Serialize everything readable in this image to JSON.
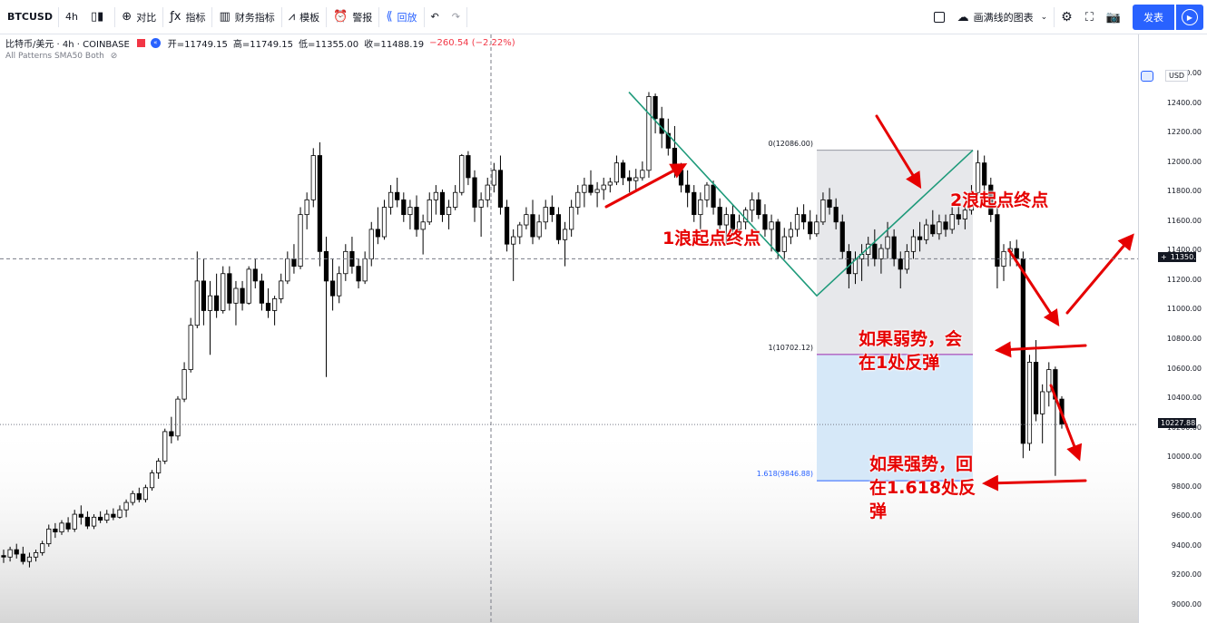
{
  "toolbar": {
    "symbol": "BTCUSD",
    "interval": "4h",
    "compare": "对比",
    "indicators": "指标",
    "financials": "财务指标",
    "templates": "模板",
    "alert": "警报",
    "replay": "回放",
    "layout_name": "画满线的图表",
    "publish": "发表",
    "icons": [
      "candles-icon",
      "plus-circle-icon",
      "fx-icon",
      "bar-chart-icon",
      "templates-icon",
      "alarm-icon",
      "rewind-icon",
      "undo-icon",
      "redo-icon",
      "square-icon",
      "cloud-icon",
      "gear-icon",
      "fullscreen-icon",
      "camera-icon",
      "play-icon"
    ]
  },
  "legend": {
    "title": "比特币/美元 · 4h · COINBASE",
    "open": "开=11749.15",
    "high": "高=11749.15",
    "low": "低=11355.00",
    "close": "收=11488.19",
    "change": "−260.54 (−2.22%)",
    "indicator": "All Patterns SMA50 Both"
  },
  "annotations": {
    "wave1": "1浪起点终点",
    "wave2": "2浪起点终点",
    "weak_line1": "如果弱势，会",
    "weak_line2": "在1处反弹",
    "strong_line1": "如果强势，回",
    "strong_line2": "在1.618处反",
    "strong_line3": "弹"
  },
  "fib_levels": [
    {
      "label": "0(12086.00)",
      "price": 12086.0
    },
    {
      "label": "1(10702.12)",
      "price": 10702.12
    },
    {
      "label": "1.618(9846.88)",
      "price": 9846.88
    }
  ],
  "price_axis": {
    "currency": "USD",
    "ticks": [
      "12600.00",
      "12400.00",
      "12200.00",
      "12000.00",
      "11800.00",
      "11600.00",
      "11400.00",
      "11200.00",
      "11000.00",
      "10800.00",
      "10600.00",
      "10400.00",
      "10200.00",
      "10000.00",
      "9800.00",
      "9600.00",
      "9400.00",
      "9200.00",
      "9000.00"
    ],
    "crosshair_price": "11350.63",
    "last_price": "10227.88"
  },
  "colors": {
    "up": "#ffffff",
    "down": "#000000",
    "wave_line": "#1e9a7a",
    "arrow": "#e60000",
    "accent": "#2962ff",
    "fib_zone_top": "#dadbe0",
    "fib_zone_bottom": "#cfe4f7"
  },
  "chart_data": {
    "type": "candlestick",
    "symbol": "BTCUSD",
    "interval": "4h",
    "ylim": [
      8950,
      12780
    ],
    "ohlc": [
      [
        9340,
        9380,
        9290,
        9330
      ],
      [
        9330,
        9400,
        9300,
        9380
      ],
      [
        9380,
        9420,
        9320,
        9350
      ],
      [
        9350,
        9400,
        9280,
        9300
      ],
      [
        9300,
        9360,
        9260,
        9330
      ],
      [
        9330,
        9380,
        9300,
        9360
      ],
      [
        9360,
        9440,
        9340,
        9420
      ],
      [
        9420,
        9550,
        9400,
        9520
      ],
      [
        9520,
        9560,
        9460,
        9500
      ],
      [
        9500,
        9580,
        9480,
        9560
      ],
      [
        9560,
        9600,
        9500,
        9520
      ],
      [
        9520,
        9650,
        9500,
        9620
      ],
      [
        9620,
        9680,
        9550,
        9600
      ],
      [
        9600,
        9640,
        9520,
        9540
      ],
      [
        9540,
        9620,
        9520,
        9600
      ],
      [
        9600,
        9640,
        9560,
        9580
      ],
      [
        9580,
        9650,
        9560,
        9620
      ],
      [
        9620,
        9660,
        9580,
        9600
      ],
      [
        9600,
        9680,
        9590,
        9650
      ],
      [
        9650,
        9720,
        9600,
        9700
      ],
      [
        9700,
        9780,
        9680,
        9760
      ],
      [
        9760,
        9800,
        9700,
        9720
      ],
      [
        9720,
        9820,
        9700,
        9800
      ],
      [
        9800,
        9920,
        9780,
        9900
      ],
      [
        9900,
        10000,
        9860,
        9980
      ],
      [
        9980,
        10200,
        9960,
        10180
      ],
      [
        10180,
        10280,
        10100,
        10150
      ],
      [
        10150,
        10420,
        10120,
        10400
      ],
      [
        10400,
        10650,
        10380,
        10600
      ],
      [
        10600,
        10950,
        10580,
        10900
      ],
      [
        10900,
        11400,
        10880,
        11200
      ],
      [
        11200,
        11350,
        10900,
        11000
      ],
      [
        11000,
        11200,
        10700,
        11100
      ],
      [
        11100,
        11250,
        10950,
        11000
      ],
      [
        11000,
        11300,
        10980,
        11250
      ],
      [
        11250,
        11300,
        11000,
        11050
      ],
      [
        11050,
        11200,
        10900,
        11150
      ],
      [
        11150,
        11200,
        11000,
        11050
      ],
      [
        11050,
        11300,
        11040,
        11280
      ],
      [
        11280,
        11350,
        11150,
        11200
      ],
      [
        11200,
        11250,
        11000,
        11050
      ],
      [
        11050,
        11150,
        10950,
        11000
      ],
      [
        11000,
        11100,
        10900,
        11080
      ],
      [
        11080,
        11250,
        11050,
        11200
      ],
      [
        11200,
        11400,
        11180,
        11350
      ],
      [
        11350,
        11450,
        11250,
        11300
      ],
      [
        11300,
        11700,
        11280,
        11650
      ],
      [
        11650,
        11800,
        11550,
        11750
      ],
      [
        11750,
        12100,
        11700,
        12050
      ],
      [
        12050,
        12140,
        11300,
        11400
      ],
      [
        11400,
        11500,
        10550,
        11200
      ],
      [
        11200,
        11350,
        11000,
        11100
      ],
      [
        11100,
        11300,
        11050,
        11250
      ],
      [
        11250,
        11450,
        11200,
        11400
      ],
      [
        11400,
        11500,
        11250,
        11300
      ],
      [
        11300,
        11350,
        11150,
        11200
      ],
      [
        11200,
        11400,
        11180,
        11350
      ],
      [
        11350,
        11600,
        11300,
        11550
      ],
      [
        11550,
        11700,
        11450,
        11500
      ],
      [
        11500,
        11750,
        11480,
        11700
      ],
      [
        11700,
        11850,
        11650,
        11800
      ],
      [
        11800,
        11900,
        11700,
        11750
      ],
      [
        11750,
        11800,
        11600,
        11650
      ],
      [
        11650,
        11750,
        11550,
        11700
      ],
      [
        11700,
        11780,
        11500,
        11550
      ],
      [
        11550,
        11650,
        11380,
        11600
      ],
      [
        11600,
        11800,
        11580,
        11750
      ],
      [
        11750,
        11850,
        11650,
        11800
      ],
      [
        11800,
        11820,
        11600,
        11650
      ],
      [
        11650,
        11750,
        11550,
        11700
      ],
      [
        11700,
        11850,
        11680,
        11800
      ],
      [
        11800,
        12060,
        11780,
        12050
      ],
      [
        12050,
        12080,
        11850,
        11900
      ],
      [
        11900,
        11950,
        11600,
        11700
      ],
      [
        11700,
        11800,
        11500,
        11750
      ],
      [
        11750,
        11900,
        11700,
        11850
      ],
      [
        11850,
        12000,
        11800,
        11950
      ],
      [
        11950,
        12050,
        11650,
        11700
      ],
      [
        11700,
        11750,
        11400,
        11450
      ],
      [
        11450,
        11550,
        11200,
        11500
      ],
      [
        11500,
        11600,
        11450,
        11580
      ],
      [
        11580,
        11700,
        11550,
        11650
      ],
      [
        11650,
        11750,
        11450,
        11500
      ],
      [
        11500,
        11650,
        11480,
        11600
      ],
      [
        11600,
        11750,
        11550,
        11700
      ],
      [
        11700,
        11780,
        11600,
        11650
      ],
      [
        11650,
        11700,
        11450,
        11480
      ],
      [
        11480,
        11600,
        11300,
        11550
      ],
      [
        11550,
        11750,
        11500,
        11700
      ],
      [
        11700,
        11850,
        11650,
        11800
      ],
      [
        11800,
        11900,
        11700,
        11850
      ],
      [
        11850,
        11950,
        11780,
        11800
      ],
      [
        11800,
        11870,
        11700,
        11820
      ],
      [
        11820,
        11900,
        11750,
        11850
      ],
      [
        11850,
        11900,
        11800,
        11870
      ],
      [
        11870,
        12050,
        11850,
        12000
      ],
      [
        12000,
        12020,
        11850,
        11900
      ],
      [
        11900,
        11950,
        11800,
        11880
      ],
      [
        11880,
        11960,
        11820,
        11900
      ],
      [
        11900,
        12010,
        11880,
        11950
      ],
      [
        11950,
        12480,
        11900,
        12450
      ],
      [
        12450,
        12470,
        12200,
        12300
      ],
      [
        12300,
        12380,
        12100,
        12200
      ],
      [
        12200,
        12300,
        12050,
        12100
      ],
      [
        12100,
        12250,
        11900,
        11950
      ],
      [
        11950,
        12000,
        11800,
        11850
      ],
      [
        11850,
        11950,
        11700,
        11800
      ],
      [
        11800,
        11850,
        11600,
        11650
      ],
      [
        11650,
        11800,
        11550,
        11750
      ],
      [
        11750,
        11870,
        11700,
        11850
      ],
      [
        11850,
        11880,
        11650,
        11700
      ],
      [
        11700,
        11760,
        11550,
        11580
      ],
      [
        11580,
        11700,
        11450,
        11650
      ],
      [
        11650,
        11720,
        11520,
        11550
      ],
      [
        11550,
        11650,
        11460,
        11600
      ],
      [
        11600,
        11700,
        11550,
        11680
      ],
      [
        11680,
        11800,
        11600,
        11750
      ],
      [
        11750,
        11800,
        11620,
        11650
      ],
      [
        11650,
        11720,
        11500,
        11550
      ],
      [
        11550,
        11650,
        11400,
        11600
      ],
      [
        11600,
        11620,
        11350,
        11400
      ],
      [
        11400,
        11560,
        11350,
        11500
      ],
      [
        11500,
        11600,
        11450,
        11550
      ],
      [
        11550,
        11700,
        11500,
        11650
      ],
      [
        11650,
        11720,
        11550,
        11600
      ],
      [
        11600,
        11680,
        11480,
        11520
      ],
      [
        11520,
        11650,
        11500,
        11600
      ],
      [
        11600,
        11800,
        11580,
        11750
      ],
      [
        11750,
        11830,
        11650,
        11700
      ],
      [
        11700,
        11760,
        11550,
        11600
      ],
      [
        11600,
        11650,
        11350,
        11400
      ],
      [
        11400,
        11450,
        11150,
        11250
      ],
      [
        11250,
        11400,
        11180,
        11350
      ],
      [
        11350,
        11450,
        11200,
        11380
      ],
      [
        11380,
        11500,
        11300,
        11450
      ],
      [
        11450,
        11550,
        11300,
        11350
      ],
      [
        11350,
        11450,
        11250,
        11420
      ],
      [
        11420,
        11600,
        11350,
        11500
      ],
      [
        11500,
        11550,
        11300,
        11350
      ],
      [
        11350,
        11400,
        11150,
        11280
      ],
      [
        11280,
        11450,
        11250,
        11400
      ],
      [
        11400,
        11550,
        11350,
        11500
      ],
      [
        11500,
        11600,
        11400,
        11480
      ],
      [
        11480,
        11620,
        11450,
        11580
      ],
      [
        11580,
        11680,
        11500,
        11520
      ],
      [
        11520,
        11650,
        11480,
        11600
      ],
      [
        11600,
        11650,
        11500,
        11550
      ],
      [
        11550,
        11700,
        11520,
        11650
      ],
      [
        11650,
        11720,
        11580,
        11620
      ],
      [
        11620,
        11700,
        11550,
        11680
      ],
      [
        11680,
        11850,
        11650,
        11800
      ],
      [
        11800,
        12086,
        11780,
        12000
      ],
      [
        12000,
        12050,
        11800,
        11850
      ],
      [
        11850,
        11900,
        11600,
        11650
      ],
      [
        11650,
        11700,
        11150,
        11300
      ],
      [
        11300,
        11450,
        11200,
        11400
      ],
      [
        11400,
        11470,
        11300,
        11420
      ],
      [
        11420,
        11480,
        11300,
        11350
      ],
      [
        11350,
        11400,
        10000,
        10100
      ],
      [
        10100,
        10700,
        10050,
        10650
      ],
      [
        10650,
        10800,
        10250,
        10300
      ],
      [
        10300,
        10500,
        10100,
        10450
      ],
      [
        10450,
        10650,
        10350,
        10600
      ],
      [
        10600,
        10620,
        9880,
        10400
      ],
      [
        10400,
        10420,
        10200,
        10230
      ]
    ]
  }
}
